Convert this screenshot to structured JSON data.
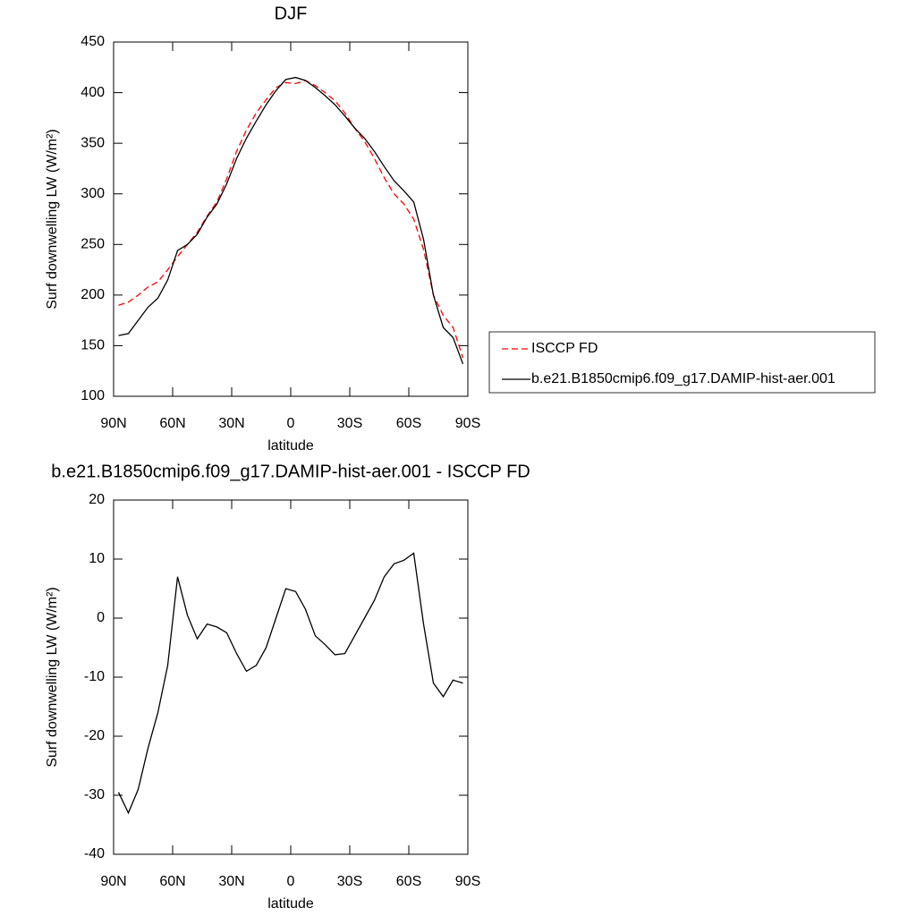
{
  "chart_data": [
    {
      "type": "line",
      "title": "DJF",
      "xlabel": "latitude",
      "ylabel": "Surf downwelling LW (W/m²)",
      "x": [
        87.5,
        82.5,
        77.5,
        72.5,
        67.5,
        62.5,
        57.5,
        52.5,
        47.5,
        42.5,
        37.5,
        32.5,
        27.5,
        22.5,
        17.5,
        12.5,
        7.5,
        2.5,
        -2.5,
        -7.5,
        -12.5,
        -17.5,
        -22.5,
        -27.5,
        -32.5,
        -37.5,
        -42.5,
        -47.5,
        -52.5,
        -57.5,
        -62.5,
        -67.5,
        -72.5,
        -77.5,
        -82.5,
        -87.5
      ],
      "series": [
        {
          "name": "ISCCP FD",
          "color": "#ff0000",
          "linestyle": "dashed",
          "values": [
            190,
            193,
            200,
            208,
            213,
            225,
            238,
            250,
            262,
            278,
            292,
            315,
            342,
            363,
            380,
            393,
            405,
            410,
            409,
            412,
            407,
            400,
            392,
            380,
            365,
            352,
            335,
            316,
            300,
            290,
            275,
            245,
            200,
            180,
            168,
            138
          ]
        },
        {
          "name": "b.e21.B1850cmip6.f09_g17.DAMIP-hist-aer.001",
          "color": "#000000",
          "linestyle": "solid",
          "values": [
            160,
            162,
            175,
            188,
            197,
            215,
            244,
            250,
            260,
            277,
            290,
            310,
            335,
            355,
            372,
            388,
            402,
            413,
            415,
            412,
            405,
            397,
            388,
            377,
            365,
            355,
            342,
            327,
            313,
            303,
            292,
            255,
            200,
            168,
            158,
            132
          ]
        }
      ],
      "xlim": [
        90,
        -90
      ],
      "xticks": [
        {
          "value": 90,
          "label": "90N"
        },
        {
          "value": 60,
          "label": "60N"
        },
        {
          "value": 30,
          "label": "30N"
        },
        0,
        {
          "value": -30,
          "label": "30S"
        },
        {
          "value": -60,
          "label": "60S"
        },
        {
          "value": -90,
          "label": "90S"
        }
      ],
      "ylim": [
        100,
        450
      ],
      "yticks": [
        100,
        150,
        200,
        250,
        300,
        350,
        400,
        450
      ],
      "legend": "right"
    },
    {
      "type": "line",
      "title": "b.e21.B1850cmip6.f09_g17.DAMIP-hist-aer.001 - ISCCP FD",
      "xlabel": "latitude",
      "ylabel": "Surf downwelling LW (W/m²)",
      "x": [
        87.5,
        82.5,
        77.5,
        72.5,
        67.5,
        62.5,
        57.5,
        52.5,
        47.5,
        42.5,
        37.5,
        32.5,
        27.5,
        22.5,
        17.5,
        12.5,
        7.5,
        2.5,
        -2.5,
        -7.5,
        -12.5,
        -17.5,
        -22.5,
        -27.5,
        -32.5,
        -37.5,
        -42.5,
        -47.5,
        -52.5,
        -57.5,
        -62.5,
        -67.5,
        -72.5,
        -77.5,
        -82.5,
        -87.5
      ],
      "values": [
        -29.5,
        -33,
        -29,
        -22,
        -16,
        -8,
        7,
        0.5,
        -3.5,
        -1,
        -1.5,
        -2.5,
        -6,
        -9,
        -8,
        -5,
        0,
        5,
        4.5,
        1.5,
        -3,
        -4.5,
        -6.2,
        -6,
        -3,
        0,
        3,
        7,
        9.2,
        9.8,
        11,
        -1,
        -11,
        -13.3,
        -10.5,
        -11
      ],
      "color": "#000000",
      "xlim": [
        90,
        -90
      ],
      "xticks": [
        {
          "value": 90,
          "label": "90N"
        },
        {
          "value": 60,
          "label": "60N"
        },
        {
          "value": 30,
          "label": "30N"
        },
        0,
        {
          "value": -30,
          "label": "30S"
        },
        {
          "value": -60,
          "label": "60S"
        },
        {
          "value": -90,
          "label": "90S"
        }
      ],
      "ylim": [
        -40,
        20
      ],
      "yticks": [
        -40,
        -30,
        -20,
        -10,
        0,
        10,
        20
      ]
    }
  ]
}
